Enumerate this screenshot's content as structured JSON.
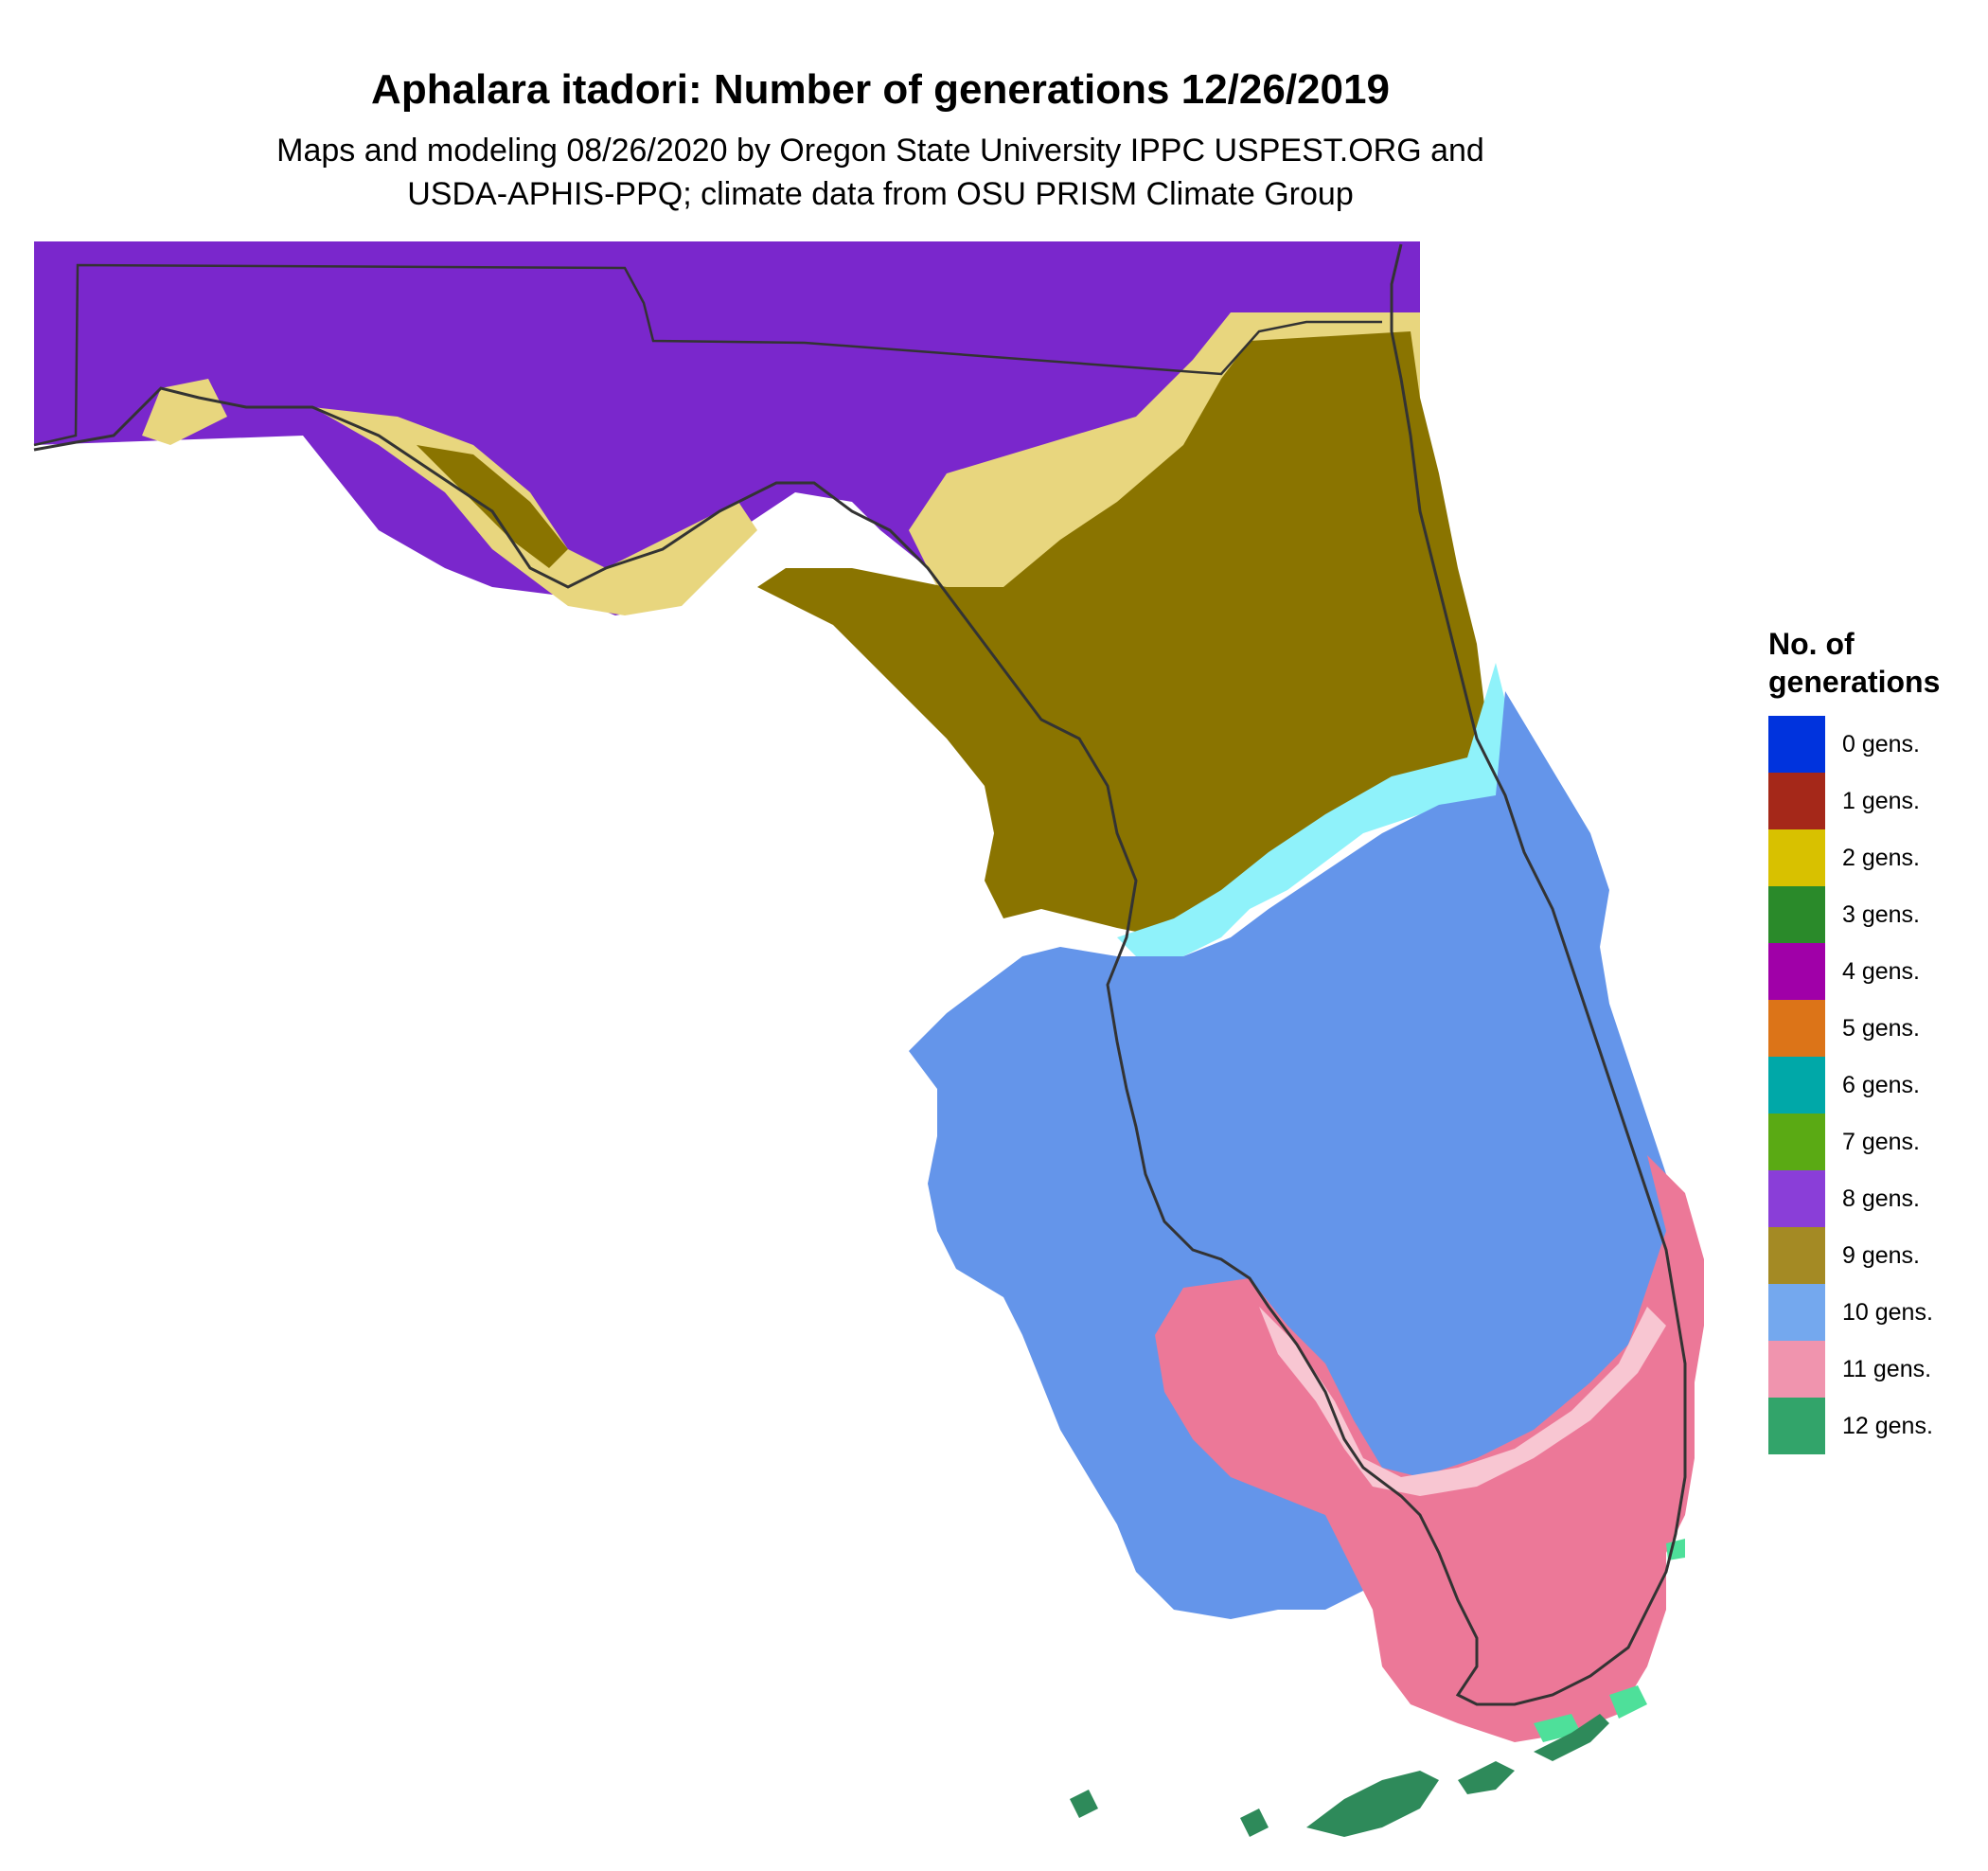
{
  "header": {
    "title": "Aphalara itadori: Number of generations 12/26/2019",
    "subtitle_line1": "Maps and modeling 08/26/2020 by Oregon State University IPPC USPEST.ORG and",
    "subtitle_line2": "USDA-APHIS-PPQ; climate data from OSU PRISM Climate Group"
  },
  "legend": {
    "title_line1": "No. of",
    "title_line2": "generations",
    "items": [
      {
        "label": "0 gens.",
        "color": "#0033dd"
      },
      {
        "label": "1 gens.",
        "color": "#a52819"
      },
      {
        "label": "2 gens.",
        "color": "#d8c100"
      },
      {
        "label": "3 gens.",
        "color": "#2a8a2a"
      },
      {
        "label": "4 gens.",
        "color": "#a000a8"
      },
      {
        "label": "5 gens.",
        "color": "#dc7418"
      },
      {
        "label": "6 gens.",
        "color": "#00a8a8"
      },
      {
        "label": "7 gens.",
        "color": "#5aaa14"
      },
      {
        "label": "8 gens.",
        "color": "#8a3ed8"
      },
      {
        "label": "9 gens.",
        "color": "#a48a24"
      },
      {
        "label": "10 gens.",
        "color": "#74a8ee"
      },
      {
        "label": "11 gens.",
        "color": "#f094ae"
      },
      {
        "label": "12 gens.",
        "color": "#32a46a"
      }
    ]
  },
  "map": {
    "region": "Florida",
    "zone_colors": {
      "8": "#7a27cc",
      "9": "#8a7400",
      "9_fringe": "#e8d67e",
      "10": "#6495ea",
      "10_fringe": "#8ff2fa",
      "11": "#ec7898",
      "11_fringe": "#f8c6d2",
      "12": "#2e8a5a",
      "12_fringe": "#4ee09a"
    },
    "outline_color": "#333333"
  }
}
